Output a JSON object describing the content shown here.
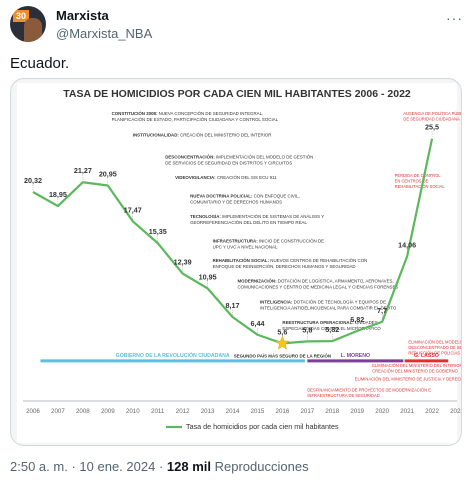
{
  "tweet": {
    "display_name": "Marxista",
    "handle": "@Marxista_NBA",
    "avatar_badge": "30",
    "more_label": "···",
    "text": "Ecuador.",
    "time": "2:50 a. m.",
    "separator": "·",
    "date": "10 ene. 2024",
    "views_count": "128 mil",
    "views_label": "Reproducciones"
  },
  "chart_data": {
    "type": "line",
    "title": "TASA DE HOMICIDIOS POR CADA CIEN MIL HABITANTES 2006 - 2022",
    "x": [
      2006,
      2007,
      2008,
      2009,
      2010,
      2011,
      2012,
      2013,
      2014,
      2015,
      2016,
      2017,
      2018,
      2019,
      2020,
      2021,
      2022
    ],
    "x_ticks": [
      "2006",
      "2007",
      "2008",
      "2009",
      "2010",
      "2011",
      "2012",
      "2013",
      "2014",
      "2015",
      "2016",
      "2017",
      "2018",
      "2019",
      "2020",
      "2021",
      "2022",
      "2023"
    ],
    "series": [
      {
        "name": "Tasa de homicidios por cada cien mil habitantes",
        "color": "#5cb85c",
        "values": [
          20.32,
          18.95,
          21.27,
          20.95,
          17.47,
          15.35,
          12.39,
          10.95,
          8.17,
          6.44,
          5.6,
          5.8,
          5.82,
          6.82,
          7.7,
          14.06,
          25.5
        ],
        "labels": [
          "20,32",
          "18,95",
          "21,27",
          "20,95",
          "17,47",
          "15,35",
          "12,39",
          "10,95",
          "8,17",
          "6,44",
          "5,6",
          "5,8",
          "5,82",
          "6,82",
          "7,7",
          "14,06",
          "25,5"
        ]
      }
    ],
    "ylim": [
      0,
      28
    ],
    "xlim": [
      2006,
      2023
    ],
    "legend": "bottom-center",
    "grid": false,
    "star_annotation": "SEGUNDO PAÍS MÁS SEGURO DE LA REGIÓN",
    "annotations": [
      {
        "x": 2009.15,
        "y": 27.8,
        "lines": [
          "CONSTITUCIÓN 2008: NUEVA CONCEPCIÓN DE SEGURIDAD INTEGRAL,",
          "PLANIFICACIÓN DE ESTADO, PARTICIPACIÓN CIUDADANA Y CONTROL SOCIAL"
        ]
      },
      {
        "x": 2010.0,
        "y": 25.7,
        "lines": [
          "INSTITUCIONALIDAD: CREACIÓN DEL MINISTERIO DEL INTERIOR"
        ]
      },
      {
        "x": 2011.3,
        "y": 23.6,
        "lines": [
          "DESCONCENTRACIÓN: IMPLEMENTACIÓN DEL MODELO DE GESTIÓN",
          "DE SERVICIOS DE SEGURIDAD EN DISTRITOS Y CIRCUITOS"
        ]
      },
      {
        "x": 2011.7,
        "y": 21.6,
        "lines": [
          "VIDEOVIGILANCIA: CREACIÓN DEL SIS ECU 911"
        ]
      },
      {
        "x": 2012.3,
        "y": 19.8,
        "lines": [
          "NUEVA DOCTRINA POLICIAL: CON ENFOQUE CIVIL,",
          "COMUNITARIO Y DE DERECHOS HUMANOS"
        ]
      },
      {
        "x": 2012.3,
        "y": 17.8,
        "lines": [
          "TECNOLOGÍA: IMPLEMENTACIÓN DE SISTEMAS DE ANÁLISIS Y",
          "GEORREFERENCIACIÓN DEL DELITO EN TIEMPO REAL"
        ]
      },
      {
        "x": 2013.2,
        "y": 15.4,
        "lines": [
          "INFRAESTRUCTURA: INICIO DE CONSTRUCCIÓN DE",
          "UPC Y UVC A NIVEL NACIONAL"
        ]
      },
      {
        "x": 2013.2,
        "y": 13.5,
        "lines": [
          "REHABILITACIÓN SOCIAL: NUEVOS CENTROS DE REHABILITACIÓN CON",
          "ENFOQUE DE REINSERCIÓN, DERECHOS HUMANOS Y SEGURIDAD"
        ]
      },
      {
        "x": 2014.2,
        "y": 11.5,
        "lines": [
          "MODERNIZACIÓN: DOTACIÓN DE LOGÍSTICA, ARMAMENTO, AERONAVES,",
          "COMUNICACIONES Y CENTRO DE MEDICINA LEGAL Y CIENCIAS FORENSES"
        ]
      },
      {
        "x": 2015.1,
        "y": 9.5,
        "lines": [
          "INTELIGENCIA: DOTACIÓN DE TECNOLOGÍA Y EQUIPOS DE",
          "INTELIGENCIA ANTIDELINCUENCIAL PARA COMBATIR EL DELITO"
        ]
      },
      {
        "x": 2016.0,
        "y": 7.5,
        "lines": [
          "REESTRUCTURA OPERACIONAL: UNIDADES",
          "ESPECIALIZADAS CONTRA EL MICROTRÁFICO"
        ]
      }
    ],
    "red_annotations": [
      {
        "x": 2020.85,
        "y": 27.8,
        "lines": [
          "AUSENCIA DE POLÍTICA PÚBLICA",
          "DE SEGURIDAD CIUDADANA"
        ]
      },
      {
        "x": 2020.5,
        "y": 21.8,
        "lines": [
          "PÉRDIDA DE CONTROL",
          "EN CENTROS DE",
          "REHABILITACIÓN SOCIAL"
        ]
      },
      {
        "x": 2021.05,
        "y": 5.6,
        "lines": [
          "ELIMINACIÓN DEL MODELO DE GESTIÓN",
          "DESCONCENTRADO DE SEGURIDAD Y",
          "REDUCCIÓN DE POLICÍAS EN TERRITORIO"
        ]
      },
      {
        "x": 2019.6,
        "y": 3.3,
        "lines": [
          "ELIMINACIÓN DEL MINISTERIO DEL INTERIOR Y",
          "CREACIÓN DEL MINISTERIO DE GOBIERNO"
        ]
      },
      {
        "x": 2018.9,
        "y": 2.0,
        "lines": [
          "ELIMINACIÓN DEL MINISTERIO DE JUSTICIA Y DERECHOS HUMANOS"
        ]
      },
      {
        "x": 2017.0,
        "y": 0.9,
        "lines": [
          "DESFINANCIAMIENTO DE PROYECTOS DE MODERNIZACIÓN E",
          "INFRAESTRUCTURA DE SEGURIDAD"
        ]
      }
    ],
    "periods": [
      {
        "label": "GOBIERNO DE LA REVOLUCIÓN CIUDADANA",
        "start": 2006.3,
        "end": 2016.9,
        "color": "#5bc0de"
      },
      {
        "label": "L. MORENO",
        "start": 2017.0,
        "end": 2020.85,
        "color": "#7b3f98"
      },
      {
        "label": "G. LASSO",
        "start": 2020.9,
        "end": 2022.65,
        "color": "#e03030"
      }
    ],
    "period_y": 3.9
  }
}
